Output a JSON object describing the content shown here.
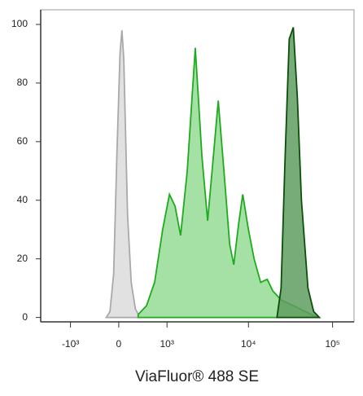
{
  "chart_data": {
    "type": "area",
    "xlabel": "ViaFluor® 488 SE",
    "xscale": "asinh",
    "xlim": [
      -2400,
      180000
    ],
    "xticks": [
      {
        "value": -1000,
        "label": "-10³"
      },
      0,
      {
        "value": 1000,
        "label": "10³"
      },
      {
        "value": 10000,
        "label": "10⁴"
      },
      {
        "value": 100000,
        "label": "10⁵"
      }
    ],
    "ylim": [
      -1.5,
      105
    ],
    "yticks": [
      0,
      20,
      40,
      60,
      80,
      100
    ],
    "grid": false,
    "series": [
      {
        "color": "#a9a9a9",
        "fill": "#dcdcdc",
        "x": [
          -200,
          -140,
          -80,
          -30,
          20,
          50,
          80,
          100,
          140,
          200,
          270,
          350
        ],
        "values": [
          0,
          2,
          15,
          55,
          90,
          98,
          88,
          70,
          35,
          12,
          3,
          0
        ]
      },
      {
        "color": "#1faa1f",
        "fill": "#95dc95",
        "x": [
          320,
          480,
          660,
          870,
          1080,
          1280,
          1510,
          1830,
          2300,
          2770,
          3250,
          3810,
          4360,
          5100,
          5970,
          6680,
          7640,
          8550,
          9990,
          11670,
          13970,
          16720,
          19530,
          24430,
          34150,
          47700,
          66640
        ],
        "values": [
          1,
          4,
          12,
          30,
          42,
          38,
          28,
          50,
          92,
          55,
          33,
          55,
          74,
          50,
          25,
          18,
          32,
          42,
          30,
          20,
          12,
          13,
          9,
          6,
          4,
          2,
          0
        ]
      },
      {
        "color": "#0b4f0b",
        "fill": "#5f9c5f",
        "x": [
          21830,
          24430,
          27300,
          30540,
          34150,
          38170,
          42660,
          51000,
          59630,
          69700
        ],
        "values": [
          0,
          10,
          55,
          95,
          99,
          75,
          40,
          10,
          2,
          0
        ]
      }
    ]
  }
}
